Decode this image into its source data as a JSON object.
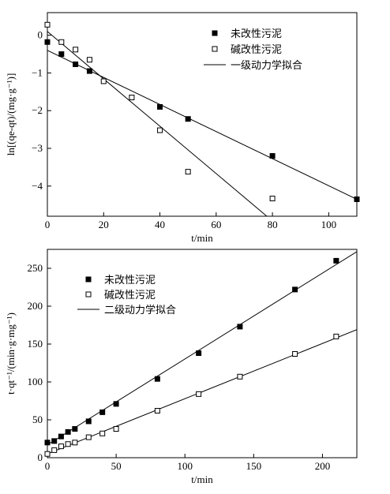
{
  "chart_data": [
    {
      "type": "scatter",
      "xlabel": "t/min",
      "ylabel": "ln[(qe-qt)/(mg·g⁻¹)]",
      "xlim": [
        0,
        110
      ],
      "ylim": [
        -4.8,
        0.6
      ],
      "x_ticks": [
        0,
        20,
        40,
        60,
        80,
        100
      ],
      "y_ticks": [
        0,
        -1,
        -2,
        -3,
        -4
      ],
      "x_tick_labels": [
        "0",
        "20",
        "40",
        "60",
        "80",
        "100"
      ],
      "y_tick_labels": [
        "0",
        "−1",
        "−2",
        "−3",
        "−4"
      ],
      "legend_position": "top-right",
      "series": [
        {
          "name": "未改性污泥",
          "marker": "filled-square",
          "x": [
            0,
            5,
            10,
            15,
            40,
            50,
            80,
            110
          ],
          "y": [
            -0.18,
            -0.5,
            -0.77,
            -0.95,
            -1.9,
            -2.22,
            -3.2,
            -4.35
          ]
        },
        {
          "name": "碱改性污泥",
          "marker": "open-square",
          "x": [
            0,
            5,
            10,
            15,
            20,
            30,
            40,
            50,
            80
          ],
          "y": [
            0.28,
            -0.18,
            -0.38,
            -0.65,
            -1.22,
            -1.65,
            -2.52,
            -3.62,
            -4.33
          ]
        }
      ],
      "fit_name": "一级动力学拟合",
      "fits": [
        {
          "x": [
            0,
            110
          ],
          "y": [
            -0.4,
            -4.35
          ]
        },
        {
          "x": [
            0,
            78
          ],
          "y": [
            0.1,
            -4.8
          ]
        }
      ]
    },
    {
      "type": "scatter",
      "xlabel": "t/min",
      "ylabel": "t·qt⁻¹/(min·g·mg⁻¹)",
      "xlim": [
        0,
        225
      ],
      "ylim": [
        0,
        275
      ],
      "x_ticks": [
        0,
        50,
        100,
        150,
        200
      ],
      "y_ticks": [
        0,
        50,
        100,
        150,
        200,
        250
      ],
      "x_tick_labels": [
        "0",
        "50",
        "100",
        "150",
        "200"
      ],
      "y_tick_labels": [
        "0",
        "50",
        "100",
        "150",
        "200",
        "250"
      ],
      "legend_position": "top-left",
      "series": [
        {
          "name": "未改性污泥",
          "marker": "filled-square",
          "x": [
            0,
            5,
            10,
            15,
            20,
            30,
            40,
            50,
            80,
            110,
            140,
            180,
            210
          ],
          "y": [
            20,
            22,
            28,
            34,
            38,
            48,
            60,
            71,
            104,
            138,
            173,
            222,
            260
          ]
        },
        {
          "name": "碱改性污泥",
          "marker": "open-square",
          "x": [
            0,
            5,
            10,
            15,
            20,
            30,
            40,
            50,
            80,
            110,
            140,
            180,
            210
          ],
          "y": [
            5,
            10,
            15,
            18,
            20,
            27,
            32,
            38,
            62,
            84,
            107,
            137,
            160
          ]
        }
      ],
      "fit_name": "二级动力学拟合",
      "fits": [
        {
          "x": [
            0,
            225
          ],
          "y": [
            17,
            272
          ]
        },
        {
          "x": [
            0,
            225
          ],
          "y": [
            5,
            169
          ]
        }
      ]
    }
  ]
}
